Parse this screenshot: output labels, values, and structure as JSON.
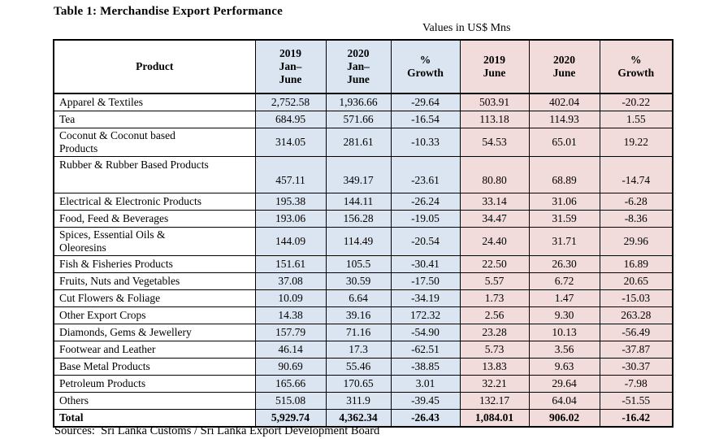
{
  "page": {
    "title": "Table 1: Merchandise Export Performance",
    "units_note": "Values in US$ Mns",
    "sources": "Sources:  Sri Lanka Customs / Sri Lanka Export Development Board"
  },
  "colors": {
    "column_group_blue": "#dbe5f1",
    "column_group_pink": "#f2dbdb",
    "border": "#000000",
    "background": "#ffffff"
  },
  "table": {
    "columns": [
      {
        "id": "product",
        "lines": [
          "Product"
        ],
        "bg": "white"
      },
      {
        "id": "2019-jan-june",
        "lines": [
          "2019",
          "Jan–",
          "June"
        ],
        "bg": "blue"
      },
      {
        "id": "2020-jan-june",
        "lines": [
          "2020",
          "Jan–",
          "June"
        ],
        "bg": "blue"
      },
      {
        "id": "growth-jan-june",
        "lines": [
          "%",
          "Growth"
        ],
        "bg": "blue"
      },
      {
        "id": "2019-june",
        "lines": [
          "2019",
          "June"
        ],
        "bg": "pink"
      },
      {
        "id": "2020-june",
        "lines": [
          "2020",
          "June"
        ],
        "bg": "pink"
      },
      {
        "id": "growth-june",
        "lines": [
          "%",
          "Growth"
        ],
        "bg": "pink"
      }
    ],
    "rows": [
      {
        "product": "Apparel & Textiles",
        "values": [
          "2,752.58",
          "1,936.66",
          "-29.64",
          "503.91",
          "402.04",
          "-20.22"
        ]
      },
      {
        "product": "Tea",
        "values": [
          "684.95",
          "571.66",
          "-16.54",
          "113.18",
          "114.93",
          "1.55"
        ]
      },
      {
        "product": "Coconut & Coconut based\nProducts",
        "values": [
          "314.05",
          "281.61",
          "-10.33",
          "54.53",
          "65.01",
          "19.22"
        ]
      },
      {
        "product": "Rubber & Rubber Based Products",
        "values": [
          "457.11",
          "349.17",
          "-23.61",
          "80.80",
          "68.89",
          "-14.74"
        ]
      },
      {
        "product": "Electrical & Electronic Products",
        "values": [
          "195.38",
          "144.11",
          "-26.24",
          "33.14",
          "31.06",
          "-6.28"
        ]
      },
      {
        "product": "Food, Feed & Beverages",
        "values": [
          "193.06",
          "156.28",
          "-19.05",
          "34.47",
          "31.59",
          "-8.36"
        ]
      },
      {
        "product": "Spices, Essential Oils &\nOleoresins",
        "values": [
          "144.09",
          "114.49",
          "-20.54",
          "24.40",
          "31.71",
          "29.96"
        ]
      },
      {
        "product": "Fish & Fisheries Products",
        "values": [
          "151.61",
          "105.5",
          "-30.41",
          "22.50",
          "26.30",
          "16.89"
        ]
      },
      {
        "product": "Fruits, Nuts and Vegetables",
        "values": [
          "37.08",
          "30.59",
          "-17.50",
          "5.57",
          "6.72",
          "20.65"
        ]
      },
      {
        "product": "Cut Flowers & Foliage",
        "values": [
          "10.09",
          "6.64",
          "-34.19",
          "1.73",
          "1.47",
          "-15.03"
        ]
      },
      {
        "product": "Other Export Crops",
        "values": [
          "14.38",
          "39.16",
          "172.32",
          "2.56",
          "9.30",
          "263.28"
        ]
      },
      {
        "product": "Diamonds, Gems & Jewellery",
        "values": [
          "157.79",
          "71.16",
          "-54.90",
          "23.28",
          "10.13",
          "-56.49"
        ]
      },
      {
        "product": "Footwear and Leather",
        "values": [
          "46.14",
          "17.3",
          "-62.51",
          "5.73",
          "3.56",
          "-37.87"
        ]
      },
      {
        "product": "Base Metal Products",
        "values": [
          "90.69",
          "55.46",
          "-38.85",
          "13.83",
          "9.63",
          "-30.37"
        ]
      },
      {
        "product": "Petroleum Products",
        "values": [
          "165.66",
          "170.65",
          "3.01",
          "32.21",
          "29.64",
          "-7.98"
        ]
      },
      {
        "product": "Others",
        "values": [
          "515.08",
          "311.9",
          "-39.45",
          "132.17",
          "64.04",
          "-51.55"
        ]
      },
      {
        "product": "Total",
        "is_total": true,
        "values": [
          "5,929.74",
          "4,362.34",
          "-26.43",
          "1,084.01",
          "906.02",
          "-16.42"
        ]
      }
    ]
  }
}
